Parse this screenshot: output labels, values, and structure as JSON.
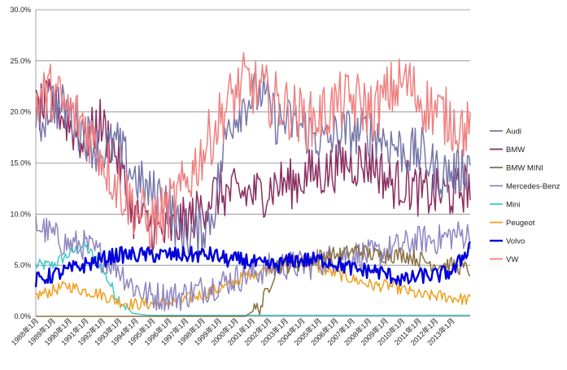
{
  "chart_data": {
    "type": "line",
    "title": "",
    "xlabel": "",
    "ylabel": "",
    "ylim": [
      0,
      0.3
    ],
    "y_tick_labels": [
      "0.0%",
      "5.0%",
      "10.0%",
      "15.0%",
      "20.0%",
      "25.0%",
      "30.0%"
    ],
    "y_ticks": [
      0,
      0.05,
      0.1,
      0.15,
      0.2,
      0.25,
      0.3
    ],
    "x_tick_labels": [
      "1988年1月",
      "1989年1月",
      "1990年1月",
      "1991年1月",
      "1992年1月",
      "1993年1月",
      "1994年1月",
      "1995年1月",
      "1996年1月",
      "1997年1月",
      "1998年1月",
      "1999年1月",
      "2000年1月",
      "2001年1月",
      "2002年1月",
      "2003年1月",
      "2004年1月",
      "2005年1月",
      "2006年1月",
      "2007年1月",
      "2008年1月",
      "2009年1月",
      "2010年1月",
      "2011年1月",
      "2012年1月",
      "2013年1月"
    ],
    "x_start": "1988年1月",
    "grid": true,
    "legend_position": "right",
    "series": [
      {
        "name": "Audi",
        "color": "#7777aa",
        "values": [
          0.18,
          0.21,
          0.2,
          0.18,
          0.16,
          0.17,
          0.14,
          0.12,
          0.12,
          0.08,
          0.08,
          0.1,
          0.19,
          0.21,
          0.22,
          0.19,
          0.19,
          0.18,
          0.17,
          0.18,
          0.18,
          0.18,
          0.17,
          0.16,
          0.16,
          0.14,
          0.14,
          0.15
        ]
      },
      {
        "name": "BMW",
        "color": "#8b2f62",
        "values": [
          0.2,
          0.21,
          0.19,
          0.17,
          0.19,
          0.16,
          0.1,
          0.09,
          0.08,
          0.09,
          0.1,
          0.12,
          0.12,
          0.12,
          0.12,
          0.13,
          0.13,
          0.14,
          0.14,
          0.15,
          0.15,
          0.15,
          0.13,
          0.13,
          0.12,
          0.12,
          0.12,
          0.13
        ]
      },
      {
        "name": "BMW MINI",
        "color": "#8a7040",
        "values": [
          0,
          0,
          0,
          0,
          0,
          0,
          0,
          0,
          0,
          0,
          0,
          0,
          0,
          0,
          0.01,
          0.05,
          0.05,
          0.055,
          0.06,
          0.06,
          0.065,
          0.06,
          0.06,
          0.06,
          0.055,
          0.05,
          0.05,
          0.045
        ]
      },
      {
        "name": "Mercedes-Benz",
        "color": "#8f86c0",
        "values": [
          0.09,
          0.08,
          0.07,
          0.07,
          0.06,
          0.05,
          0.03,
          0.02,
          0.02,
          0.02,
          0.025,
          0.03,
          0.035,
          0.04,
          0.045,
          0.05,
          0.05,
          0.05,
          0.055,
          0.06,
          0.06,
          0.06,
          0.065,
          0.07,
          0.075,
          0.075,
          0.08,
          0.08
        ]
      },
      {
        "name": "Mini",
        "color": "#40c8c8",
        "values": [
          0.05,
          0.05,
          0.06,
          0.07,
          0.05,
          0.02,
          0.003,
          0.001,
          0.001,
          0.001,
          0.001,
          0.001,
          0.001,
          0.001,
          0.001,
          0.001,
          0.001,
          0.001,
          0.001,
          0.001,
          0.001,
          0.001,
          0.001,
          0.001,
          0.001,
          0.001,
          0.001,
          0.001
        ]
      },
      {
        "name": "Peugeot",
        "color": "#f0a020",
        "values": [
          0.02,
          0.025,
          0.03,
          0.025,
          0.022,
          0.015,
          0.012,
          0.012,
          0.013,
          0.015,
          0.02,
          0.025,
          0.03,
          0.04,
          0.045,
          0.05,
          0.055,
          0.05,
          0.045,
          0.04,
          0.035,
          0.03,
          0.03,
          0.025,
          0.02,
          0.02,
          0.018,
          0.016
        ]
      },
      {
        "name": "Volvo",
        "color": "#0000dd",
        "values": [
          0.035,
          0.04,
          0.045,
          0.05,
          0.055,
          0.06,
          0.06,
          0.06,
          0.06,
          0.06,
          0.06,
          0.06,
          0.055,
          0.055,
          0.05,
          0.05,
          0.055,
          0.055,
          0.055,
          0.05,
          0.045,
          0.045,
          0.04,
          0.035,
          0.04,
          0.04,
          0.045,
          0.07
        ]
      },
      {
        "name": "VW",
        "color": "#f08080",
        "values": [
          0.21,
          0.22,
          0.2,
          0.19,
          0.16,
          0.13,
          0.11,
          0.09,
          0.1,
          0.12,
          0.15,
          0.18,
          0.21,
          0.23,
          0.22,
          0.21,
          0.2,
          0.19,
          0.2,
          0.21,
          0.21,
          0.2,
          0.22,
          0.23,
          0.21,
          0.2,
          0.19,
          0.18
        ]
      }
    ]
  }
}
